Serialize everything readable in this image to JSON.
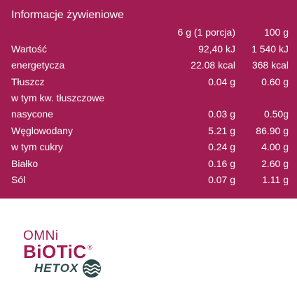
{
  "title": "Informacje żywieniowe",
  "columns": {
    "portion": "6 g (1 porcja)",
    "per100": "100 g"
  },
  "rows": [
    {
      "label": "Wartość",
      "portion": "92,40 kJ",
      "per100": "1 540 kJ"
    },
    {
      "label": "energetycza",
      "portion": "22.08 kcal",
      "per100": "368 kcal"
    },
    {
      "label": "Tłuszcz",
      "portion": "0.04 g",
      "per100": "0.60 g"
    },
    {
      "label": "w tym kw. tłuszczowe",
      "portion": "",
      "per100": ""
    },
    {
      "label": "nasycone",
      "portion": "0.03 g",
      "per100": "0.50g"
    },
    {
      "label": "Węglowodany",
      "portion": "5.21 g",
      "per100": "86.90 g"
    },
    {
      "label": "w tym cukry",
      "portion": "0.24 g",
      "per100": "4.00 g"
    },
    {
      "label": "Białko",
      "portion": "0.16 g",
      "per100": "2.60 g"
    },
    {
      "label": "Sól",
      "portion": "0.07 g",
      "per100": "1.11 g"
    }
  ],
  "logo": {
    "line1": "OMNi",
    "line2": "BiOTiC",
    "registered": "®",
    "line3": "HETOX",
    "icon": "wave-icon",
    "brand_color": "#a11c52",
    "hetox_color": "#2e4a4a"
  },
  "colors": {
    "panel": "#a11c52",
    "text": "#ffffff"
  }
}
